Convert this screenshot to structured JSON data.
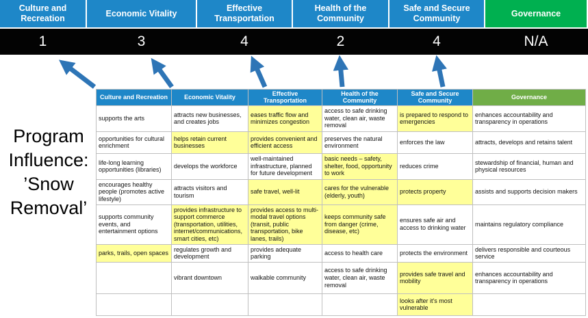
{
  "title": {
    "text": "Program Influence: ’Snow Removal’",
    "lines": [
      "Program",
      "Influence:",
      "’Snow",
      "Removal’"
    ]
  },
  "categories": [
    {
      "label": "Culture and Recreation",
      "score": "1"
    },
    {
      "label": "Economic Vitality",
      "score": "3"
    },
    {
      "label": "Effective Transportation",
      "score": "4"
    },
    {
      "label": "Health of the Community",
      "score": "2"
    },
    {
      "label": "Safe and Secure Community",
      "score": "4"
    },
    {
      "label": "Governance",
      "score": "N/A"
    }
  ],
  "colors": {
    "category_blue": "#1E87C8",
    "category_green": "#00B050",
    "table_header_blue": "#1E87C8",
    "table_header_green": "#70AD47",
    "score_bar_bg": "#030303",
    "score_text": "#FFFFFF",
    "highlight_yellow": "#FFFF99",
    "arrow_blue": "#2E75B6",
    "cell_border": "#BFBFBF"
  },
  "table": {
    "rows": [
      [
        {
          "text": "supports the arts",
          "highlight": false
        },
        {
          "text": "attracts new businesses, and creates jobs",
          "highlight": false
        },
        {
          "text": "eases traffic flow and minimizes congestion",
          "highlight": true
        },
        {
          "text": "access to safe drinking water, clean air, waste removal",
          "highlight": false
        },
        {
          "text": "is prepared to respond to emergencies",
          "highlight": true
        },
        {
          "text": "enhances accountability and transparency in operations",
          "highlight": false
        }
      ],
      [
        {
          "text": "opportunities for cultural enrichment",
          "highlight": false
        },
        {
          "text": "helps retain current businesses",
          "highlight": true
        },
        {
          "text": "provides convenient and efficient access",
          "highlight": true
        },
        {
          "text": "preserves the natural environment",
          "highlight": false
        },
        {
          "text": "enforces the law",
          "highlight": false
        },
        {
          "text": "attracts, develops and retains talent",
          "highlight": false
        }
      ],
      [
        {
          "text": "life-long learning opportunities (libraries)",
          "highlight": false
        },
        {
          "text": "develops the workforce",
          "highlight": false
        },
        {
          "text": "well-maintained infrastructure, planned for future development",
          "highlight": false
        },
        {
          "text": "basic needs – safety, shelter, food, opportunity to work",
          "highlight": true
        },
        {
          "text": "reduces crime",
          "highlight": false
        },
        {
          "text": "stewardship of financial, human and physical resources",
          "highlight": false
        }
      ],
      [
        {
          "text": "encourages healthy people (promotes active lifestyle)",
          "highlight": false
        },
        {
          "text": "attracts visitors and tourism",
          "highlight": false
        },
        {
          "text": "safe travel, well-lit",
          "highlight": true
        },
        {
          "text": "cares for the vulnerable (elderly, youth)",
          "highlight": true
        },
        {
          "text": "protects property",
          "highlight": true
        },
        {
          "text": "assists and supports decision makers",
          "highlight": false
        }
      ],
      [
        {
          "text": "supports community events, and entertainment options",
          "highlight": false
        },
        {
          "text": "provides infrastructure to support commerce (transportation, utilities, internet/communications, smart cities, etc)",
          "highlight": true
        },
        {
          "text": "provides access to multi-modal travel options (transit, public transportation, bike lanes, trails)",
          "highlight": true
        },
        {
          "text": "keeps community safe from danger (crime, disease, etc)",
          "highlight": true
        },
        {
          "text": "ensures safe air and access to drinking water",
          "highlight": false
        },
        {
          "text": "maintains regulatory compliance",
          "highlight": false
        }
      ],
      [
        {
          "text": "parks, trails, open spaces",
          "highlight": true
        },
        {
          "text": "regulates growth and development",
          "highlight": false
        },
        {
          "text": "provides adequate parking",
          "highlight": false
        },
        {
          "text": "access to health care",
          "highlight": false
        },
        {
          "text": "protects the environment",
          "highlight": false
        },
        {
          "text": "delivers responsible and courteous service",
          "highlight": false
        }
      ],
      [
        {
          "text": "",
          "highlight": false
        },
        {
          "text": "vibrant downtown",
          "highlight": false
        },
        {
          "text": "walkable community",
          "highlight": false
        },
        {
          "text": "access to safe drinking water, clean air, waste removal",
          "highlight": false
        },
        {
          "text": "provides safe travel and mobility",
          "highlight": true
        },
        {
          "text": "enhances accountability and transparency in operations",
          "highlight": false
        }
      ],
      [
        {
          "text": "",
          "highlight": false
        },
        {
          "text": "",
          "highlight": false
        },
        {
          "text": "",
          "highlight": false
        },
        {
          "text": "",
          "highlight": false
        },
        {
          "text": "looks after it's most vulnerable",
          "highlight": true
        },
        {
          "text": "",
          "highlight": false
        }
      ]
    ]
  }
}
